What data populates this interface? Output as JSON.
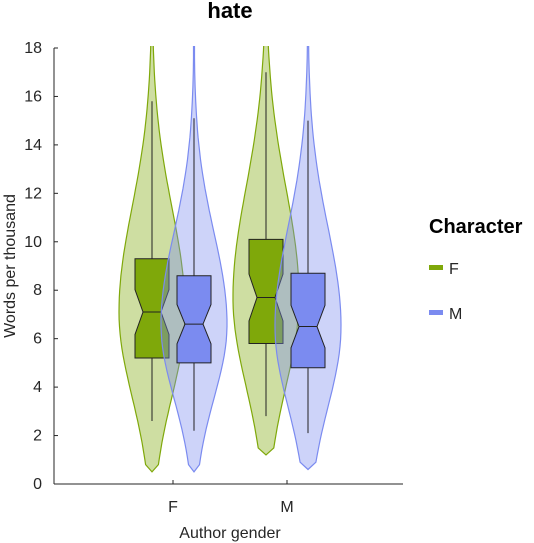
{
  "chart_data": {
    "type": "violin",
    "title": "hate",
    "xlabel": "Author gender",
    "ylabel": "Words per thousand",
    "categories": [
      "F",
      "M"
    ],
    "ylim": [
      0,
      18
    ],
    "yticks": [
      0,
      2,
      4,
      6,
      8,
      10,
      12,
      14,
      16,
      18
    ],
    "legend_title": "Character",
    "legend_placement": "right",
    "grid": false,
    "series": [
      {
        "name": "F",
        "color": "#7FA80A",
        "groups": [
          {
            "category": "F",
            "min": 0.5,
            "whisker_low": 2.6,
            "q1": 5.2,
            "median": 7.1,
            "q3": 9.3,
            "whisker_high": 15.8,
            "max": 18.5
          },
          {
            "category": "M",
            "min": 1.2,
            "whisker_low": 2.8,
            "q1": 5.8,
            "median": 7.7,
            "q3": 10.1,
            "whisker_high": 17.0,
            "max": 18.5
          }
        ]
      },
      {
        "name": "M",
        "color": "#7B8BF0",
        "groups": [
          {
            "category": "F",
            "min": 0.5,
            "whisker_low": 2.2,
            "q1": 5.0,
            "median": 6.6,
            "q3": 8.6,
            "whisker_high": 15.1,
            "max": 18.5
          },
          {
            "category": "M",
            "min": 0.6,
            "whisker_low": 2.1,
            "q1": 4.8,
            "median": 6.5,
            "q3": 8.7,
            "whisker_high": 15.0,
            "max": 18.5
          }
        ]
      }
    ]
  }
}
